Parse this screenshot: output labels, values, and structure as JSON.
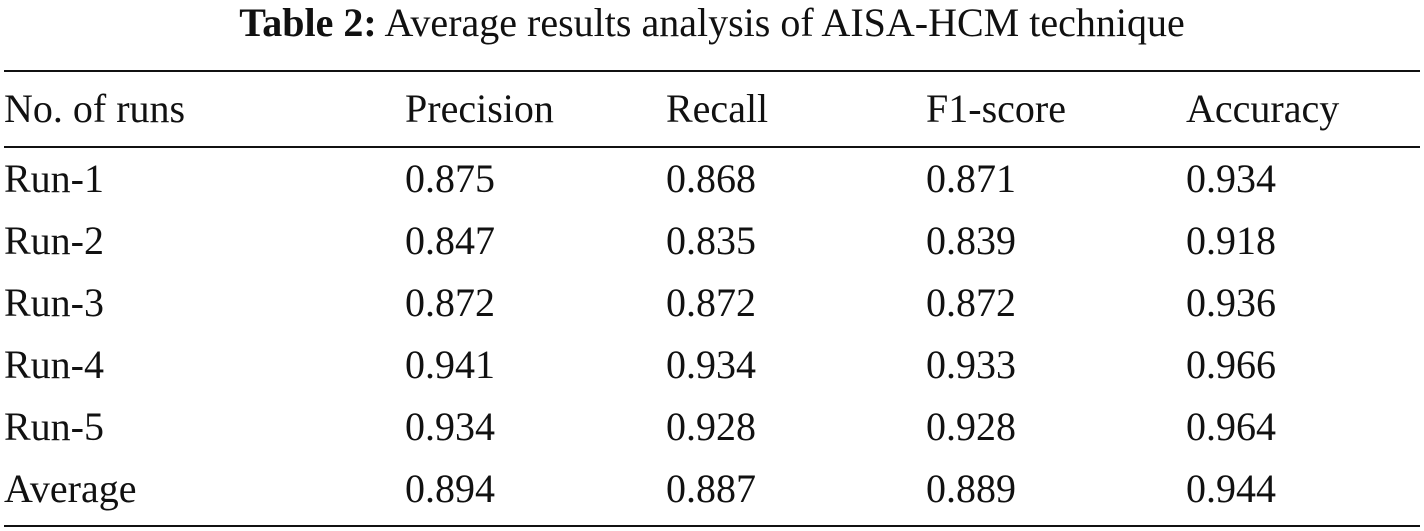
{
  "caption": {
    "label": "Table 2:",
    "title": "Average results analysis of AISA-HCM technique"
  },
  "table": {
    "headers": [
      "No. of runs",
      "Precision",
      "Recall",
      "F1-score",
      "Accuracy"
    ],
    "rows": [
      [
        "Run-1",
        "0.875",
        "0.868",
        "0.871",
        "0.934"
      ],
      [
        "Run-2",
        "0.847",
        "0.835",
        "0.839",
        "0.918"
      ],
      [
        "Run-3",
        "0.872",
        "0.872",
        "0.872",
        "0.936"
      ],
      [
        "Run-4",
        "0.941",
        "0.934",
        "0.933",
        "0.966"
      ],
      [
        "Run-5",
        "0.934",
        "0.928",
        "0.928",
        "0.964"
      ],
      [
        "Average",
        "0.894",
        "0.887",
        "0.889",
        "0.944"
      ]
    ]
  }
}
